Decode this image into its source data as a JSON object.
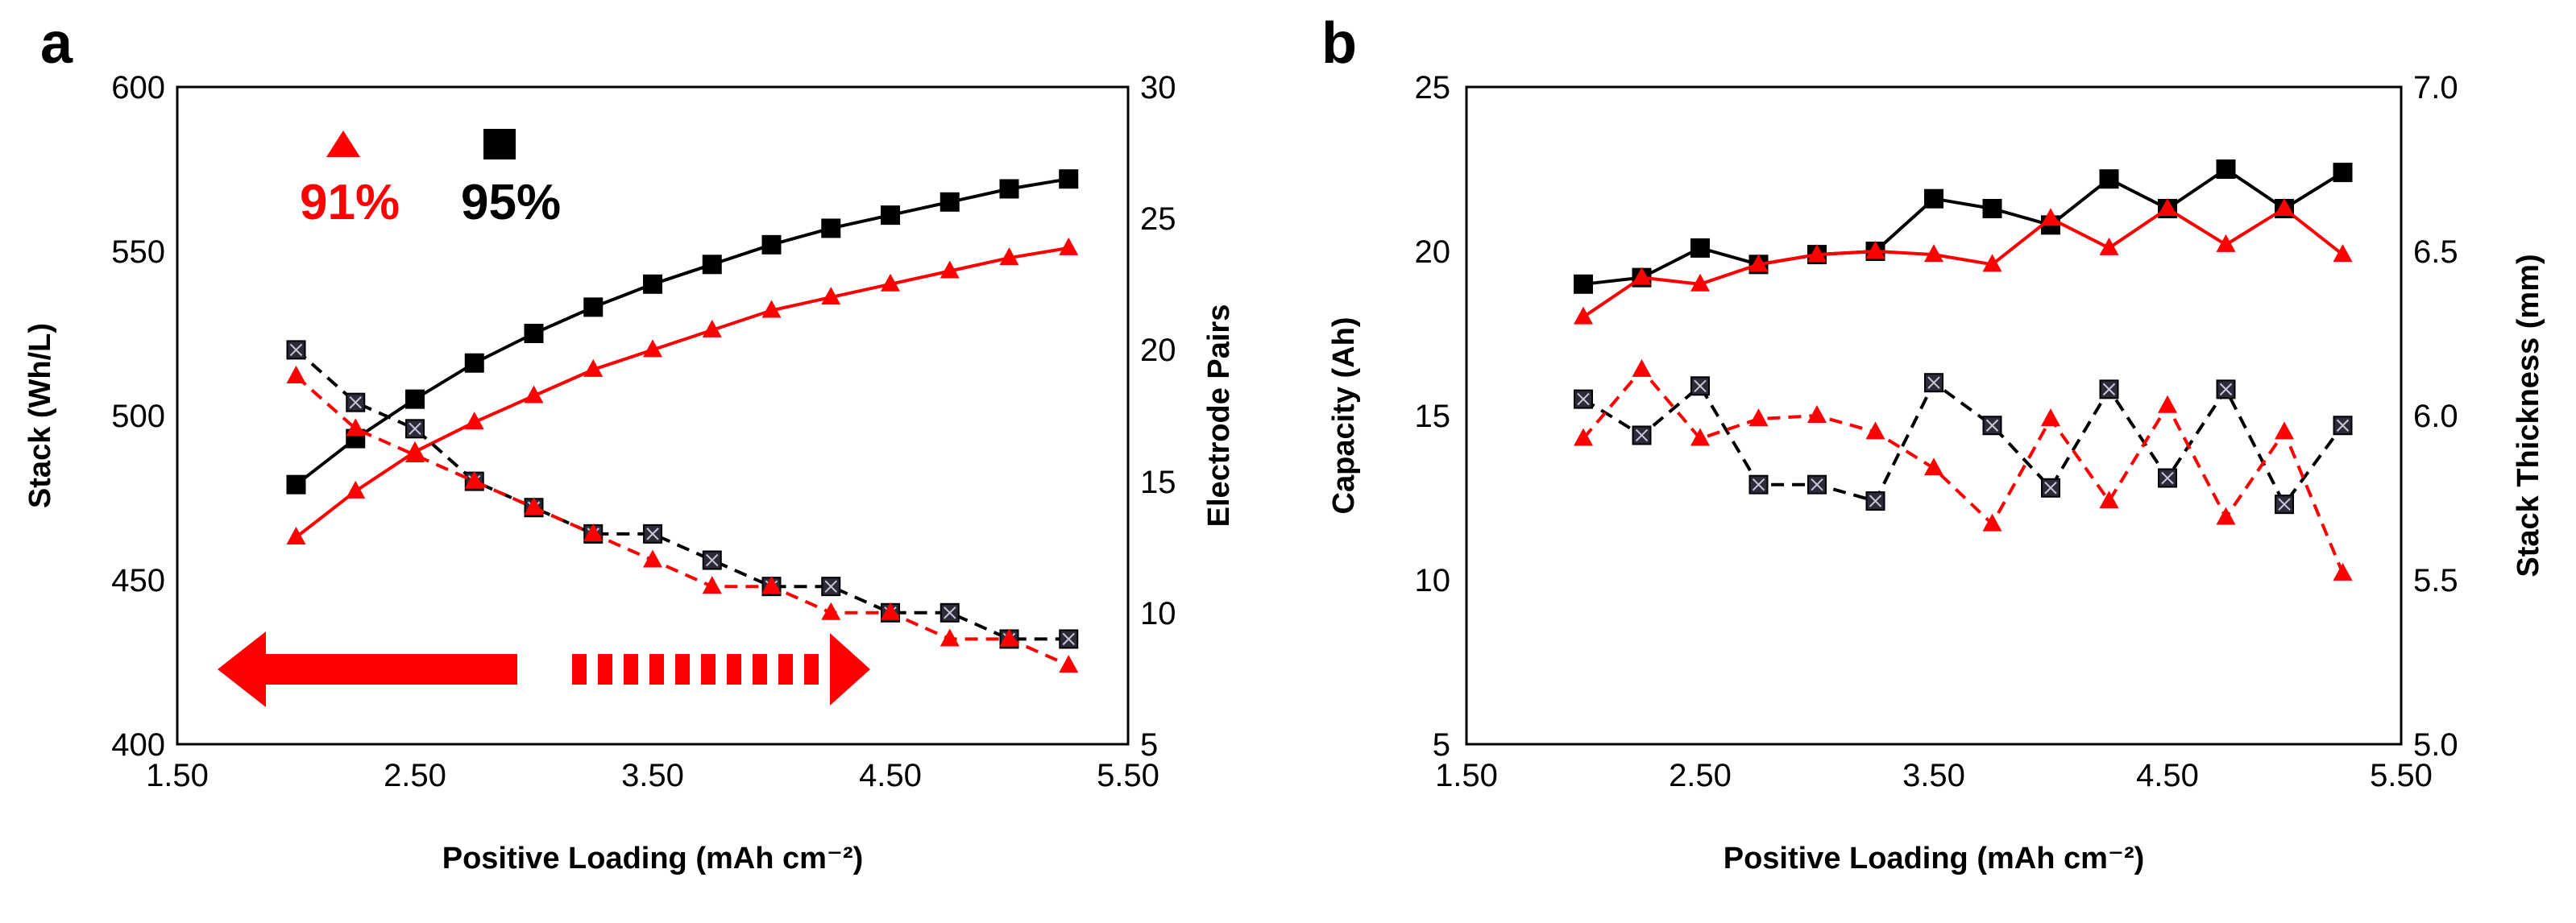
{
  "colors": {
    "red": "#ff0000",
    "black": "#000000",
    "marker_fill_dark": "#2b2b3a"
  },
  "chart_data": [
    {
      "panel": "a",
      "type": "line",
      "xlabel": "Positive Loading (mAh cm⁻²)",
      "ylabel_left": "Stack (Wh/L)",
      "ylabel_right": "Electrode Pairs",
      "xlim": [
        1.5,
        5.5
      ],
      "ylim_left": [
        400,
        600
      ],
      "ylim_right": [
        5,
        30
      ],
      "x_ticks": [
        "1.50",
        "2.50",
        "3.50",
        "4.50",
        "5.50"
      ],
      "y_left_ticks": [
        "400",
        "450",
        "500",
        "550",
        "600"
      ],
      "y_right_ticks": [
        "5",
        "10",
        "15",
        "20",
        "25",
        "30"
      ],
      "legend": [
        {
          "label": "91%",
          "marker": "triangle",
          "color": "#ff0000"
        },
        {
          "label": "95%",
          "marker": "square",
          "color": "#000000"
        }
      ],
      "arrows": [
        {
          "direction": "left",
          "style": "solid",
          "color": "#ff0000"
        },
        {
          "direction": "right",
          "style": "dashed",
          "color": "#ff0000"
        }
      ],
      "x": [
        2.0,
        2.25,
        2.5,
        2.75,
        3.0,
        3.25,
        3.5,
        3.75,
        4.0,
        4.25,
        4.5,
        4.75,
        5.0,
        5.25
      ],
      "series": [
        {
          "name": "95% energy density",
          "axis": "left",
          "color": "#000000",
          "marker": "square",
          "dash": "solid",
          "values": [
            479,
            493,
            505,
            516,
            525,
            533,
            540,
            546,
            552,
            557,
            561,
            565,
            569,
            572
          ]
        },
        {
          "name": "91% energy density",
          "axis": "left",
          "color": "#ff0000",
          "marker": "triangle",
          "dash": "solid",
          "values": [
            463,
            477,
            489,
            498,
            506,
            514,
            520,
            526,
            532,
            536,
            540,
            544,
            548,
            551
          ]
        },
        {
          "name": "95% electrode pairs",
          "axis": "right",
          "color": "#000000",
          "marker": "square-x",
          "dash": "dashed",
          "values": [
            20,
            18,
            17,
            15,
            14,
            13,
            13,
            12,
            11,
            11,
            10,
            10,
            9,
            9
          ]
        },
        {
          "name": "91% electrode pairs",
          "axis": "right",
          "color": "#ff0000",
          "marker": "triangle",
          "dash": "dashed",
          "values": [
            19,
            17,
            16,
            15,
            14,
            13,
            12,
            11,
            11,
            10,
            10,
            9,
            9,
            8
          ]
        }
      ]
    },
    {
      "panel": "b",
      "type": "line",
      "xlabel": "Positive Loading (mAh cm⁻²)",
      "ylabel_left": "Capacity (Ah)",
      "ylabel_right": "Stack Thickness (mm)",
      "xlim": [
        1.5,
        5.5
      ],
      "ylim_left": [
        5,
        25
      ],
      "ylim_right": [
        5.0,
        7.0
      ],
      "x_ticks": [
        "1.50",
        "2.50",
        "3.50",
        "4.50",
        "5.50"
      ],
      "y_left_ticks": [
        "5",
        "10",
        "15",
        "20",
        "25"
      ],
      "y_right_ticks": [
        "5.0",
        "5.5",
        "6.0",
        "6.5",
        "7.0"
      ],
      "x": [
        2.0,
        2.25,
        2.5,
        2.75,
        3.0,
        3.25,
        3.5,
        3.75,
        4.0,
        4.25,
        4.5,
        4.75,
        5.0,
        5.25
      ],
      "series": [
        {
          "name": "95% capacity",
          "axis": "left",
          "color": "#000000",
          "marker": "square",
          "dash": "solid",
          "values": [
            19.0,
            19.2,
            20.1,
            19.6,
            19.9,
            20.0,
            21.6,
            21.3,
            20.8,
            22.2,
            21.3,
            22.5,
            21.3,
            22.4
          ]
        },
        {
          "name": "91% capacity",
          "axis": "left",
          "color": "#ff0000",
          "marker": "triangle",
          "dash": "solid",
          "values": [
            18.0,
            19.2,
            19.0,
            19.6,
            19.9,
            20.0,
            19.9,
            19.6,
            21.0,
            20.1,
            21.3,
            20.2,
            21.3,
            19.9
          ]
        },
        {
          "name": "95% stack thickness",
          "axis": "right",
          "color": "#000000",
          "marker": "square-x",
          "dash": "dashed",
          "values": [
            6.05,
            5.94,
            6.09,
            5.79,
            5.79,
            5.74,
            6.1,
            5.97,
            5.78,
            6.08,
            5.81,
            6.08,
            5.73,
            5.97
          ]
        },
        {
          "name": "91% stack thickness",
          "axis": "right",
          "color": "#ff0000",
          "marker": "triangle",
          "dash": "dashed",
          "values": [
            5.93,
            6.14,
            5.93,
            5.99,
            6.0,
            5.95,
            5.84,
            5.67,
            5.99,
            5.74,
            6.03,
            5.69,
            5.95,
            5.52
          ]
        }
      ]
    }
  ]
}
